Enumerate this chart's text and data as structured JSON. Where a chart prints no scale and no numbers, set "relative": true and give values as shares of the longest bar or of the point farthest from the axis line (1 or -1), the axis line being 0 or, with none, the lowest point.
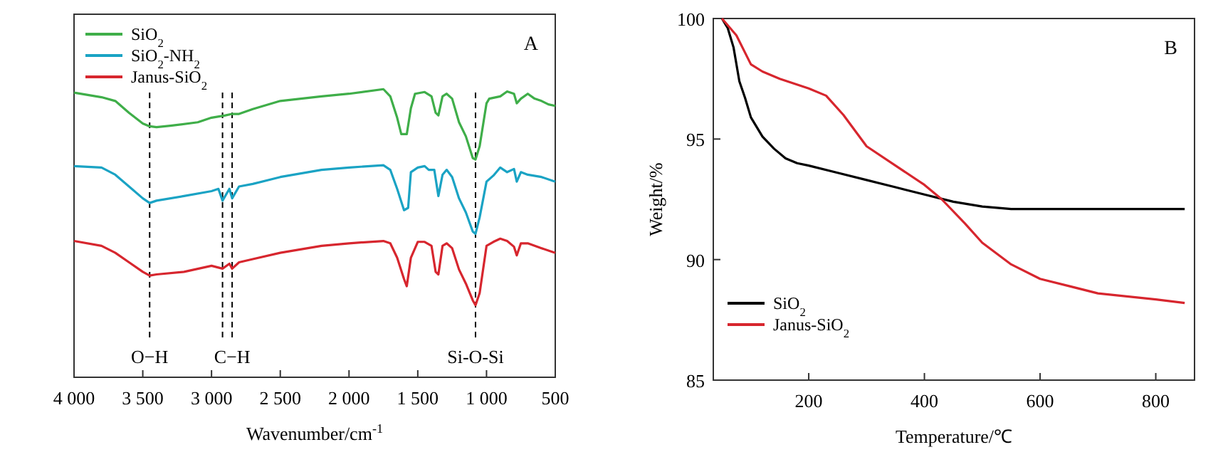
{
  "chart_data": [
    {
      "type": "line",
      "title": "A",
      "xlabel": "Wavenumber/cm$^{-1}$",
      "relative": true,
      "legend": "top left",
      "line_style": "solid",
      "xlim": [
        4000,
        500
      ],
      "xticks": [
        {
          "value": 4000,
          "label": "4 000"
        },
        {
          "value": 3500,
          "label": "3 500"
        },
        {
          "value": 3000,
          "label": "3 000"
        },
        {
          "value": 2500,
          "label": "2 500"
        },
        {
          "value": 2000,
          "label": "2 000"
        },
        {
          "value": 1500,
          "label": "1 500"
        },
        {
          "value": 1000,
          "label": "1 000"
        },
        500
      ],
      "ref_lines": [
        {
          "axis": "x",
          "value": 3450,
          "label": "O−H",
          "line_style": "dashed"
        },
        {
          "axis": "x",
          "value": 2920,
          "label": null,
          "line_style": "dashed"
        },
        {
          "axis": "x",
          "value": 2850,
          "label": "C−H",
          "line_style": "dashed"
        },
        {
          "axis": "x",
          "value": 1080,
          "label": "Si-O-Si",
          "line_style": "dashed"
        }
      ],
      "series": [
        {
          "name": "SiO$_{2}$",
          "color": "#3fae49",
          "x": [
            4000,
            3800,
            3700,
            3600,
            3500,
            3450,
            3400,
            3300,
            3100,
            3000,
            2900,
            2850,
            2800,
            2700,
            2500,
            2200,
            2000,
            1750,
            1700,
            1650,
            1620,
            1580,
            1550,
            1520,
            1450,
            1400,
            1370,
            1350,
            1320,
            1290,
            1250,
            1200,
            1150,
            1100,
            1080,
            1050,
            1000,
            980,
            900,
            850,
            800,
            780,
            750,
            700,
            650,
            600,
            550,
            500
          ],
          "values": [
            0.988,
            0.972,
            0.959,
            0.918,
            0.881,
            0.871,
            0.868,
            0.873,
            0.885,
            0.901,
            0.909,
            0.914,
            0.914,
            0.931,
            0.959,
            0.975,
            0.984,
            1.0,
            0.975,
            0.901,
            0.844,
            0.844,
            0.934,
            0.984,
            0.99,
            0.975,
            0.918,
            0.909,
            0.975,
            0.984,
            0.967,
            0.885,
            0.836,
            0.761,
            0.756,
            0.802,
            0.951,
            0.967,
            0.975,
            0.992,
            0.984,
            0.951,
            0.967,
            0.984,
            0.967,
            0.959,
            0.947,
            0.942
          ]
        },
        {
          "name": "SiO$_{2}$-NH$_{2}$",
          "color": "#1aa3c4",
          "x": [
            4000,
            3800,
            3700,
            3600,
            3500,
            3450,
            3400,
            3200,
            3000,
            2950,
            2920,
            2870,
            2850,
            2800,
            2700,
            2500,
            2200,
            2000,
            1750,
            1700,
            1650,
            1600,
            1570,
            1550,
            1500,
            1450,
            1420,
            1380,
            1350,
            1320,
            1290,
            1250,
            1200,
            1150,
            1100,
            1080,
            1050,
            1000,
            950,
            900,
            850,
            800,
            780,
            750,
            700,
            600,
            500
          ],
          "values": [
            0.733,
            0.728,
            0.703,
            0.662,
            0.621,
            0.605,
            0.613,
            0.629,
            0.646,
            0.654,
            0.613,
            0.654,
            0.621,
            0.662,
            0.671,
            0.695,
            0.72,
            0.728,
            0.736,
            0.72,
            0.654,
            0.58,
            0.588,
            0.712,
            0.728,
            0.733,
            0.72,
            0.72,
            0.629,
            0.703,
            0.72,
            0.695,
            0.621,
            0.572,
            0.506,
            0.498,
            0.555,
            0.679,
            0.7,
            0.728,
            0.712,
            0.723,
            0.679,
            0.712,
            0.703,
            0.695,
            0.679
          ]
        },
        {
          "name": "Janus-SiO$_{2}$",
          "color": "#d7262e",
          "x": [
            4000,
            3800,
            3700,
            3600,
            3500,
            3450,
            3400,
            3200,
            3000,
            2920,
            2870,
            2850,
            2800,
            2700,
            2500,
            2200,
            2000,
            1750,
            1700,
            1650,
            1600,
            1580,
            1550,
            1500,
            1450,
            1400,
            1370,
            1350,
            1320,
            1290,
            1250,
            1200,
            1150,
            1100,
            1080,
            1050,
            1000,
            950,
            900,
            850,
            800,
            780,
            750,
            700,
            600,
            500
          ],
          "values": [
            0.473,
            0.456,
            0.432,
            0.399,
            0.366,
            0.353,
            0.357,
            0.366,
            0.387,
            0.377,
            0.394,
            0.377,
            0.399,
            0.41,
            0.432,
            0.456,
            0.465,
            0.473,
            0.465,
            0.415,
            0.341,
            0.316,
            0.415,
            0.47,
            0.47,
            0.456,
            0.366,
            0.357,
            0.456,
            0.465,
            0.448,
            0.374,
            0.325,
            0.267,
            0.25,
            0.292,
            0.456,
            0.47,
            0.481,
            0.473,
            0.453,
            0.423,
            0.465,
            0.465,
            0.448,
            0.432
          ]
        }
      ]
    },
    {
      "type": "line",
      "title": "B",
      "xlabel": "Temperature/℃",
      "ylabel": "Weight/%",
      "legend": "bottom left",
      "line_style": "solid",
      "xlim": [
        35,
        867
      ],
      "xticks": [
        200,
        400,
        600,
        800
      ],
      "ylim": [
        85,
        100
      ],
      "yticks": [
        85,
        90,
        95,
        100
      ],
      "series": [
        {
          "name": "SiO$_{2}$",
          "color": "#000000",
          "x": [
            50,
            60,
            70,
            75,
            80,
            90,
            100,
            120,
            140,
            160,
            180,
            200,
            250,
            300,
            350,
            400,
            450,
            500,
            550,
            600,
            700,
            850
          ],
          "values": [
            100,
            99.6,
            98.8,
            98.1,
            97.4,
            96.7,
            95.9,
            95.1,
            94.6,
            94.2,
            94.0,
            93.9,
            93.6,
            93.3,
            93.0,
            92.7,
            92.4,
            92.2,
            92.1,
            92.1,
            92.1,
            92.1
          ]
        },
        {
          "name": "Janus-SiO$_{2}$",
          "color": "#d7262e",
          "x": [
            50,
            75,
            100,
            120,
            150,
            200,
            230,
            260,
            300,
            350,
            400,
            430,
            470,
            500,
            550,
            600,
            650,
            700,
            800,
            850
          ],
          "values": [
            100,
            99.3,
            98.1,
            97.8,
            97.5,
            97.1,
            96.8,
            96.0,
            94.7,
            93.9,
            93.1,
            92.5,
            91.5,
            90.7,
            89.8,
            89.2,
            88.9,
            88.6,
            88.35,
            88.2
          ]
        }
      ]
    }
  ]
}
